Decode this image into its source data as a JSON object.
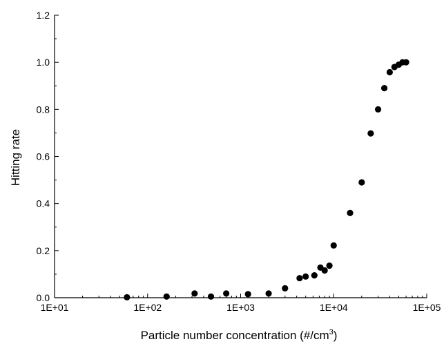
{
  "chart_data": {
    "type": "scatter",
    "title": "",
    "xlabel": "Particle number concentration (#/cm",
    "xlabel_superscript": "3",
    "xlabel_suffix": ")",
    "ylabel": "Hitting rate",
    "xscale": "log",
    "xlim": [
      10,
      100000
    ],
    "ylim": [
      0,
      1.2
    ],
    "x_ticks": [
      10,
      100,
      1000,
      10000,
      100000
    ],
    "x_tick_labels": [
      "1E+01",
      "1E+02",
      "1E+03",
      "1E+04",
      "1E+05"
    ],
    "y_ticks": [
      0,
      0.2,
      0.4,
      0.6,
      0.8,
      1.0,
      1.2
    ],
    "y_tick_labels": [
      "0.0",
      "0.2",
      "0.4",
      "0.6",
      "0.8",
      "1.0",
      "1.2"
    ],
    "grid": false,
    "legend": "none",
    "marker_color": "#000000",
    "series": [
      {
        "x": [
          60,
          160,
          320,
          480,
          700,
          1200,
          2000,
          3000,
          4300,
          5000,
          6200,
          7200,
          8000,
          9000,
          10000,
          15000,
          20000,
          25000,
          30000,
          35000,
          40000,
          45000,
          50000,
          55000,
          60000
        ],
        "y": [
          0.002,
          0.005,
          0.018,
          0.005,
          0.018,
          0.015,
          0.018,
          0.04,
          0.083,
          0.09,
          0.095,
          0.128,
          0.116,
          0.136,
          0.222,
          0.36,
          0.49,
          0.698,
          0.8,
          0.89,
          0.958,
          0.98,
          0.99,
          1.0,
          1.0
        ]
      }
    ]
  }
}
